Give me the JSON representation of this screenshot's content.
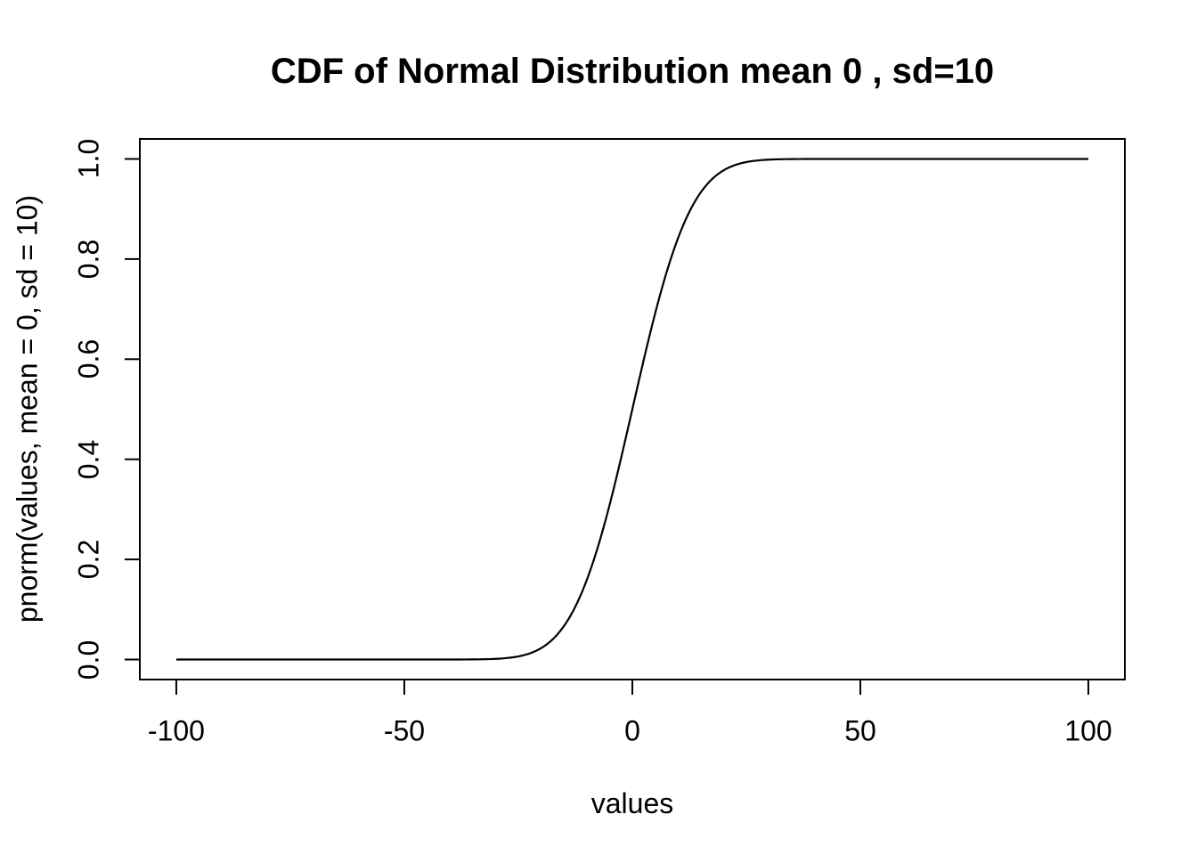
{
  "chart_data": {
    "type": "line",
    "title": "CDF of Normal Distribution mean 0 , sd=10",
    "xlabel": "values",
    "ylabel": "pnorm(values, mean = 0, sd = 10)",
    "xlim": [
      -100,
      100
    ],
    "ylim": [
      0,
      1
    ],
    "usr": [
      -108,
      108,
      -0.04,
      1.04
    ],
    "grid": false,
    "legend": null,
    "background": "#ffffff",
    "axis_color": "#000000",
    "line_color": "#000000",
    "x_ticks": [
      -100,
      -50,
      0,
      50,
      100
    ],
    "x_tick_labels": [
      "-100",
      "-50",
      "0",
      "50",
      "100"
    ],
    "y_ticks": [
      0.0,
      0.2,
      0.4,
      0.6,
      0.8,
      1.0
    ],
    "y_tick_labels": [
      "0.0",
      "0.2",
      "0.4",
      "0.6",
      "0.8",
      "1.0"
    ],
    "series": [
      {
        "name": "pnorm(values, mean = 0, sd = 10)",
        "function": "normal_cdf",
        "mean": 0,
        "sd": 10,
        "x_start": -100,
        "x_end": 100,
        "points": [
          [
            -100,
            0.0
          ],
          [
            -95,
            0.0
          ],
          [
            -90,
            0.0
          ],
          [
            -85,
            0.0
          ],
          [
            -80,
            0.0
          ],
          [
            -75,
            0.0
          ],
          [
            -70,
            0.0
          ],
          [
            -65,
            0.0
          ],
          [
            -60,
            0.0
          ],
          [
            -55,
            0.0
          ],
          [
            -50,
            3e-07
          ],
          [
            -45,
            3.4e-06
          ],
          [
            -40,
            3.17e-05
          ],
          [
            -35,
            0.000233
          ],
          [
            -30,
            0.00135
          ],
          [
            -25,
            0.00621
          ],
          [
            -20,
            0.02275
          ],
          [
            -15,
            0.06681
          ],
          [
            -10,
            0.15866
          ],
          [
            -5,
            0.30854
          ],
          [
            0,
            0.5
          ],
          [
            5,
            0.69146
          ],
          [
            10,
            0.84134
          ],
          [
            15,
            0.93319
          ],
          [
            20,
            0.97725
          ],
          [
            25,
            0.99379
          ],
          [
            30,
            0.99865
          ],
          [
            35,
            0.99977
          ],
          [
            40,
            0.99997
          ],
          [
            45,
            0.9999966
          ],
          [
            50,
            0.9999997
          ],
          [
            55,
            1.0
          ],
          [
            60,
            1.0
          ],
          [
            65,
            1.0
          ],
          [
            70,
            1.0
          ],
          [
            75,
            1.0
          ],
          [
            80,
            1.0
          ],
          [
            85,
            1.0
          ],
          [
            90,
            1.0
          ],
          [
            95,
            1.0
          ],
          [
            100,
            1.0
          ]
        ]
      }
    ]
  }
}
